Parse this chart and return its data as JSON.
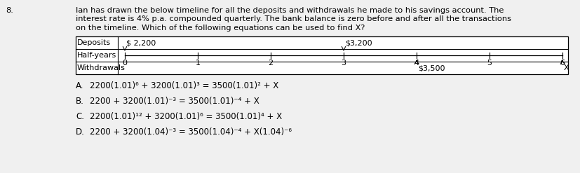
{
  "question_num": "8.",
  "question_lines": [
    "Ian has drawn the below timeline for all the deposits and withdrawals he made to his savings account. The",
    "interest rate is 4% p.a. compounded quarterly. The bank balance is zero before and after all the transactions",
    "on the timeline. Which of the following equations can be used to find X?"
  ],
  "table": {
    "col_labels": [
      "Deposits",
      "Half-years",
      "Withdrawals"
    ],
    "tick_count": 7,
    "deposit_labels": [
      [
        "$ 2,200",
        0
      ],
      [
        "$3,200",
        3
      ]
    ],
    "withdrawal_labels": [
      [
        "$3,500",
        4
      ],
      [
        "X",
        6
      ]
    ]
  },
  "options": [
    [
      "A.",
      "2200(1.01)⁶ + 3200(1.01)³ = 3500(1.01)² + Χ"
    ],
    [
      "B.",
      "2200 + 3200(1.01)⁻³ = 3500(1.01)⁻⁴ + Χ"
    ],
    [
      "C.",
      "2200(1.01)¹² + 3200(1.01)⁶ = 3500(1.01)⁴ + Χ"
    ],
    [
      "D.",
      "2200 + 3200(1.04)⁻³ = 3500(1.04)⁻⁴ + Χ(1.04)⁻⁶"
    ]
  ],
  "bg_color": "#f0f0f0",
  "text_color": "#000000",
  "table_border_color": "#000000",
  "font_size_question": 8.2,
  "font_size_table": 8.0,
  "font_size_options": 8.5
}
